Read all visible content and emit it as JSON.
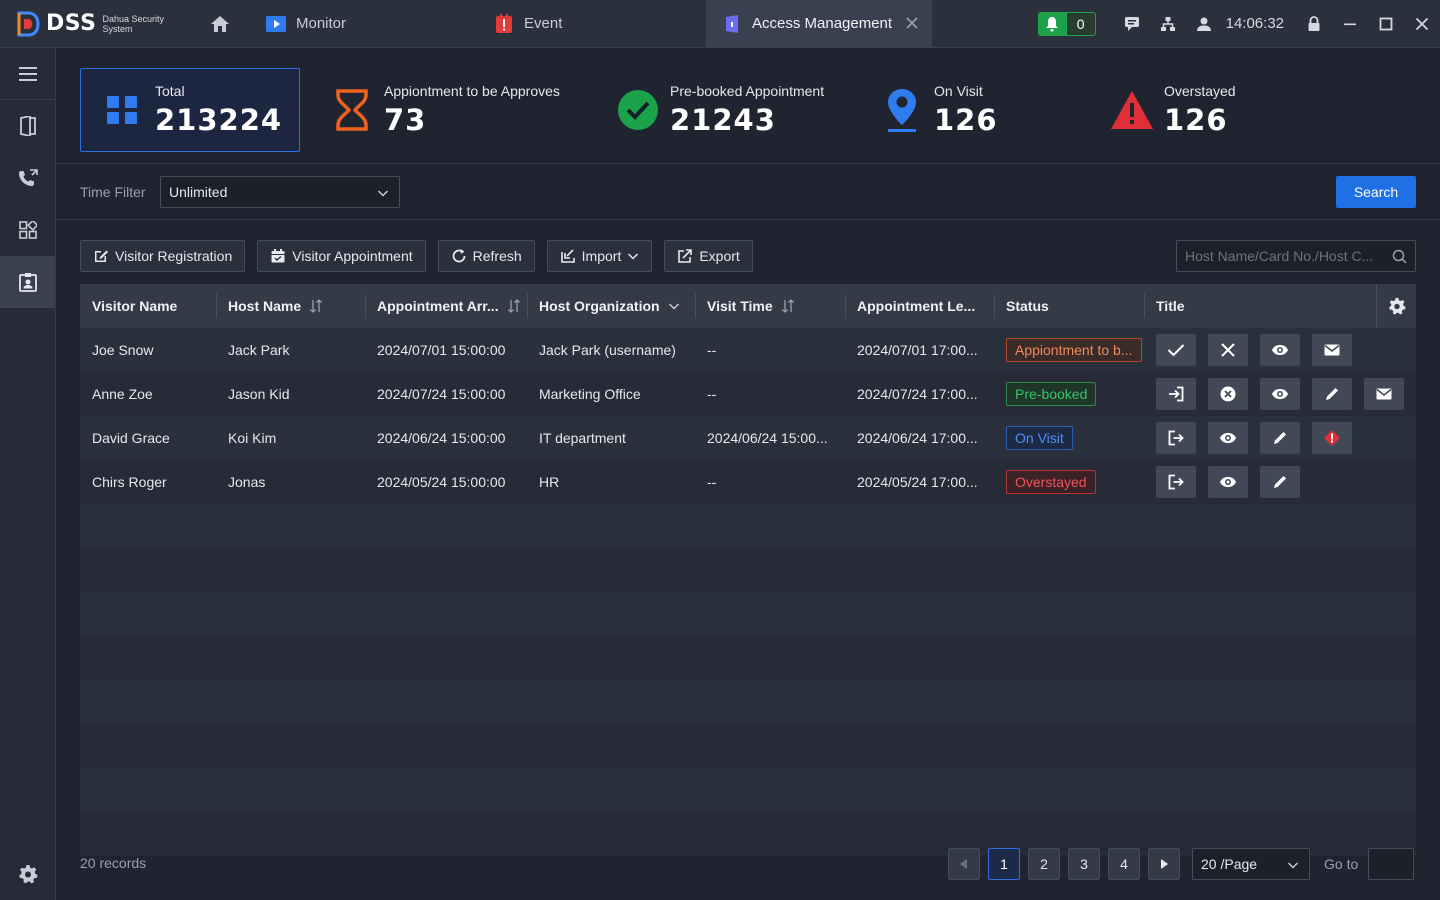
{
  "app": {
    "logo_text": "DSS",
    "logo_sub": "Dahua Security System",
    "tabs": [
      {
        "label": "Monitor"
      },
      {
        "label": "Event"
      },
      {
        "label": "Access Management"
      }
    ],
    "alarm_count": "0",
    "clock": "14:06:32"
  },
  "stats": {
    "total": {
      "label": "Total",
      "value": "213224"
    },
    "to_approve": {
      "label": "Appiontment to be Approves",
      "value": "73"
    },
    "prebooked": {
      "label": "Pre-booked Appointment",
      "value": "21243"
    },
    "on_visit": {
      "label": "On Visit",
      "value": "126"
    },
    "overstayed": {
      "label": "Overstayed",
      "value": "126"
    }
  },
  "filter": {
    "label": "Time Filter",
    "value": "Unlimited",
    "search_label": "Search"
  },
  "toolbar": {
    "registration": "Visitor Registration",
    "appointment": "Visitor Appointment",
    "refresh": "Refresh",
    "import": "Import",
    "export": "Export",
    "search_placeholder": "Host Name/Card No./Host C..."
  },
  "table": {
    "columns": [
      "Visitor Name",
      "Host Name",
      "Appointment Arr...",
      "Host Organization",
      "Visit Time",
      "Appointment Le...",
      "Status",
      "Title"
    ],
    "rows": [
      {
        "visitor": "Joe Snow",
        "host": "Jack Park",
        "arrival": "2024/07/01 15:00:00",
        "org": "Jack Park (username)",
        "visit": "--",
        "leave": "2024/07/01 17:00...",
        "status": "Appiontment to b..."
      },
      {
        "visitor": "Anne Zoe",
        "host": "Jason Kid",
        "arrival": "2024/07/24 15:00:00",
        "org": "Marketing Office",
        "visit": "--",
        "leave": "2024/07/24 17:00...",
        "status": "Pre-booked"
      },
      {
        "visitor": "David Grace",
        "host": "Koi Kim",
        "arrival": "2024/06/24 15:00:00",
        "org": "IT department",
        "visit": "2024/06/24 15:00...",
        "leave": "2024/06/24 17:00...",
        "status": "On Visit"
      },
      {
        "visitor": "Chirs Roger",
        "host": "Jonas",
        "arrival": "2024/05/24 15:00:00",
        "org": "HR",
        "visit": "--",
        "leave": "2024/05/24 17:00...",
        "status": "Overstayed"
      }
    ]
  },
  "footer": {
    "records": "20 records",
    "pages": [
      "1",
      "2",
      "3",
      "4"
    ],
    "per_page": "20 /Page",
    "goto_label": "Go to"
  },
  "colors": {
    "accent": "#1f6fe5",
    "approve": "#f08a5b",
    "prebooked": "#34c46b",
    "onvisit": "#4f8dff",
    "overstayed": "#f0525c"
  }
}
